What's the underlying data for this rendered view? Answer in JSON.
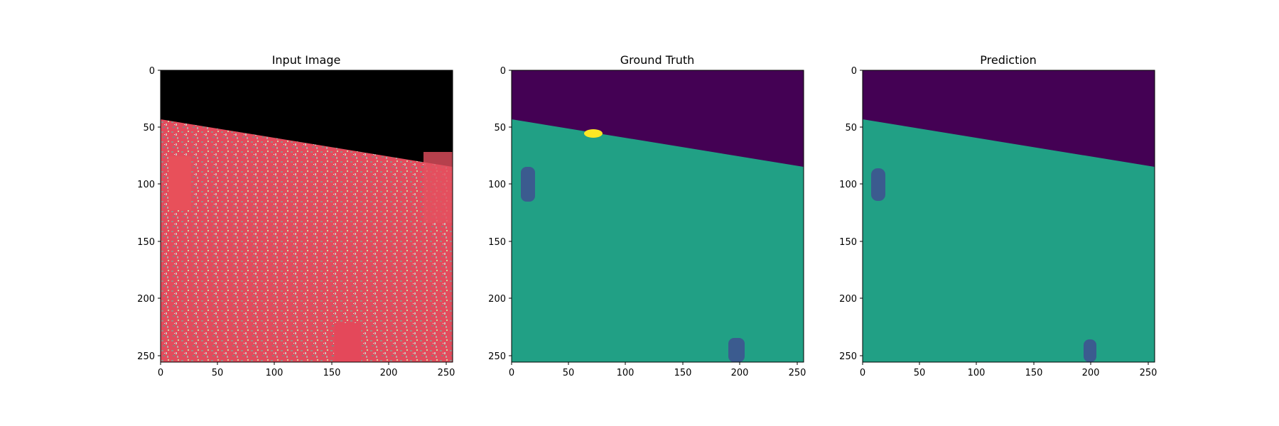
{
  "figure": {
    "panels": [
      {
        "id": "input",
        "title": "Input Image",
        "x_ticks": [
          "0",
          "50",
          "100",
          "150",
          "200",
          "250"
        ],
        "y_ticks": [
          "0",
          "50",
          "100",
          "150",
          "200",
          "250"
        ]
      },
      {
        "id": "ground-truth",
        "title": "Ground Truth",
        "x_ticks": [
          "0",
          "50",
          "100",
          "150",
          "200",
          "250"
        ],
        "y_ticks": [
          "0",
          "50",
          "100",
          "150",
          "200",
          "250"
        ]
      },
      {
        "id": "prediction",
        "title": "Prediction",
        "x_ticks": [
          "0",
          "50",
          "100",
          "150",
          "200",
          "250"
        ],
        "y_ticks": [
          "0",
          "50",
          "100",
          "150",
          "200",
          "250"
        ]
      }
    ],
    "image_extent": [
      0,
      256
    ],
    "colors": {
      "nodata": "#000000",
      "background_class": "#440154",
      "land_class": "#21a085",
      "blob_class": "#3b5b8f",
      "minor_class": "#fde725",
      "input_base": "#e0505e"
    }
  }
}
